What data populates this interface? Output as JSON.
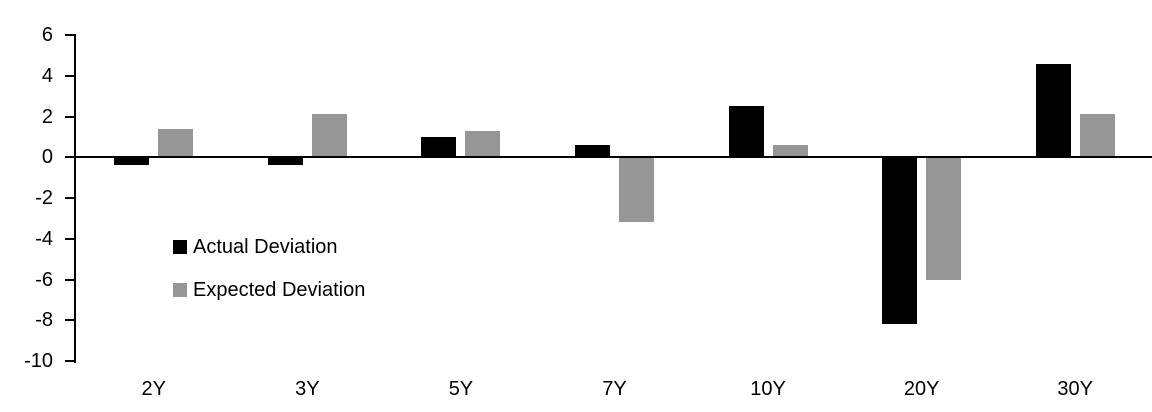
{
  "chart_data": {
    "type": "bar",
    "categories": [
      "2Y",
      "3Y",
      "5Y",
      "7Y",
      "10Y",
      "20Y",
      "30Y"
    ],
    "series": [
      {
        "name": "Actual Deviation",
        "color": "#000000",
        "values": [
          -0.4,
          -0.4,
          1.0,
          0.6,
          2.5,
          -8.2,
          4.6
        ]
      },
      {
        "name": "Expected Deviation",
        "color": "#969696",
        "values": [
          1.4,
          2.1,
          1.3,
          -3.2,
          0.6,
          -6.0,
          2.1
        ]
      }
    ],
    "title": "",
    "xlabel": "",
    "ylabel": "",
    "ylim": [
      -10,
      6
    ],
    "yticks": [
      6,
      4,
      2,
      0,
      -2,
      -4,
      -6,
      -8,
      -10
    ],
    "grid": false,
    "legend_position": "inside-left",
    "axis_color": "#000000",
    "background_color": "#ffffff"
  }
}
